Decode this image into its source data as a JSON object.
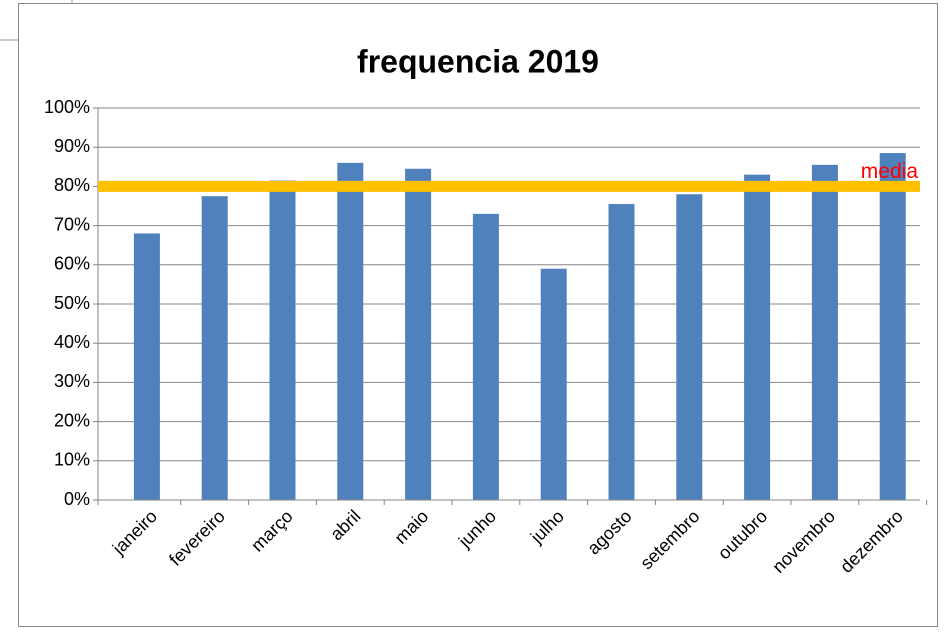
{
  "chart_data": {
    "type": "bar",
    "title": "frequencia 2019",
    "categories": [
      "janeiro",
      "fevereiro",
      "março",
      "abril",
      "maio",
      "junho",
      "julho",
      "agosto",
      "setembro",
      "outubro",
      "novembro",
      "dezembro"
    ],
    "values": [
      68,
      77.5,
      81.5,
      86,
      84.5,
      73,
      59,
      75.5,
      78,
      83,
      85.5,
      88.5
    ],
    "color": "#4f81bd",
    "ylim": [
      0,
      100
    ],
    "yticks": [
      {
        "value": 0,
        "label": "0%"
      },
      {
        "value": 10,
        "label": "10%"
      },
      {
        "value": 20,
        "label": "20%"
      },
      {
        "value": 30,
        "label": "30%"
      },
      {
        "value": 40,
        "label": "40%"
      },
      {
        "value": 50,
        "label": "50%"
      },
      {
        "value": 60,
        "label": "60%"
      },
      {
        "value": 70,
        "label": "70%"
      },
      {
        "value": 80,
        "label": "80%"
      },
      {
        "value": 90,
        "label": "90%"
      },
      {
        "value": 100,
        "label": "100%"
      }
    ],
    "grid": true,
    "reference_line": {
      "label": "media",
      "value": 80,
      "color": "#ffc000",
      "label_color": "#ff0000"
    }
  }
}
